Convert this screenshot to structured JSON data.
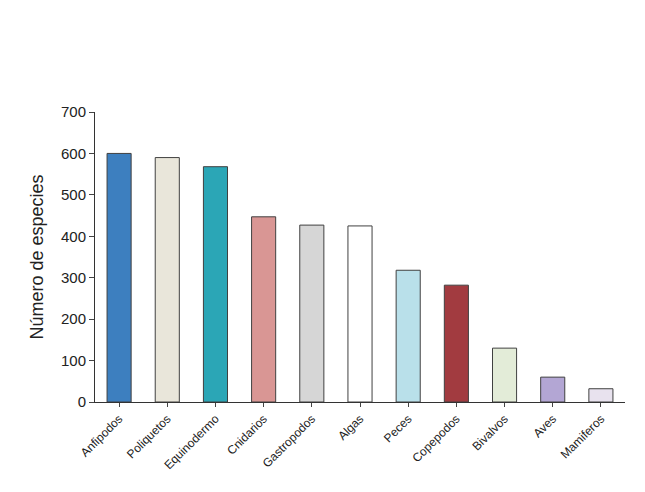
{
  "chart_data": {
    "type": "bar",
    "y_label": "Número de especies",
    "categories": [
      "Anfipodos",
      "Poliquetos",
      "Equinodermo",
      "Cnidarios",
      "Gastropodos",
      "Algas",
      "Peces",
      "Copepodos",
      "Bivalvos",
      "Aves",
      "Mamiferos"
    ],
    "values": [
      600,
      590,
      568,
      447,
      427,
      425,
      318,
      282,
      130,
      60,
      32
    ],
    "colors": [
      "#3d7fbf",
      "#e9e6da",
      "#2ba6b6",
      "#d99694",
      "#d6d6d6",
      "#ffffff",
      "#b9e0ea",
      "#a23b40",
      "#e3ecd8",
      "#b3a6d4",
      "#e8e2ee"
    ],
    "ylim": [
      0,
      700
    ],
    "yticks": [
      0,
      100,
      200,
      300,
      400,
      500,
      600,
      700
    ],
    "grid": false
  }
}
